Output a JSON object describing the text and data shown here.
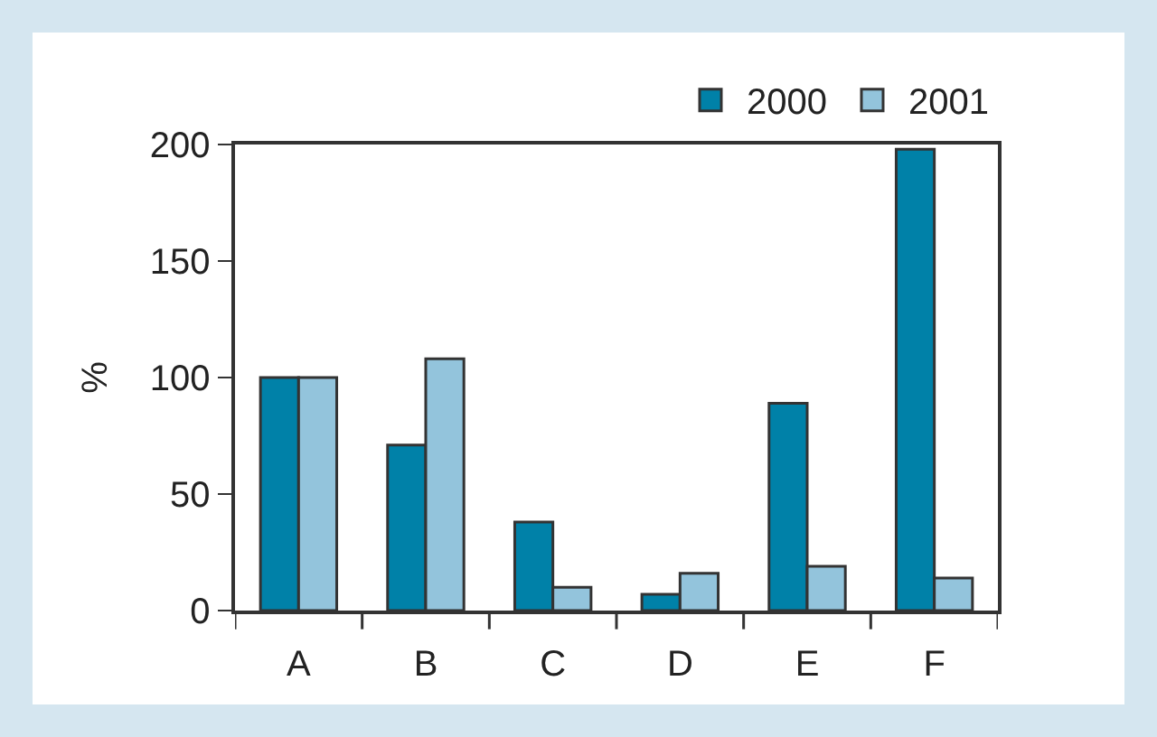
{
  "chart_data": {
    "type": "bar",
    "ylabel": "%",
    "categories": [
      "A",
      "B",
      "C",
      "D",
      "E",
      "F"
    ],
    "series": [
      {
        "name": "2000",
        "color": "#0081a8",
        "values": [
          100,
          71,
          38,
          7,
          89,
          198
        ]
      },
      {
        "name": "2001",
        "color": "#93c4dc",
        "values": [
          100,
          108,
          10,
          16,
          19,
          14
        ]
      }
    ],
    "ylim": [
      0,
      200
    ],
    "yticks": [
      0,
      50,
      100,
      150,
      200
    ],
    "grid": false,
    "legend": "top right"
  }
}
